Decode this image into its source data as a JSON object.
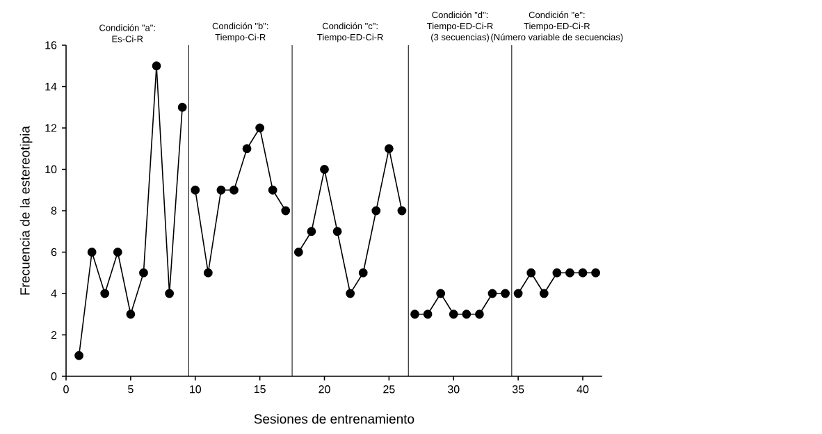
{
  "chart_data": {
    "type": "line",
    "xlabel": "Sesiones de entrenamiento",
    "ylabel": "Frecuencia de la estereotipia",
    "series": [
      {
        "color": "#000000",
        "x": [
          1,
          2,
          3,
          4,
          5,
          6,
          7,
          8,
          9
        ],
        "values": [
          1,
          6,
          4,
          6,
          3,
          5,
          15,
          4,
          13
        ]
      },
      {
        "color": "#000000",
        "x": [
          10,
          11,
          12,
          13,
          14,
          15,
          16,
          17
        ],
        "values": [
          9,
          5,
          9,
          9,
          11,
          12,
          9,
          8
        ]
      },
      {
        "color": "#000000",
        "x": [
          18,
          19,
          20,
          21,
          22,
          23,
          24,
          25,
          26
        ],
        "values": [
          6,
          7,
          10,
          7,
          4,
          5,
          8,
          11,
          8
        ]
      },
      {
        "color": "#000000",
        "x": [
          27,
          28,
          29,
          30,
          31,
          32,
          33,
          34
        ],
        "values": [
          3,
          3,
          4,
          3,
          3,
          3,
          4,
          4
        ]
      },
      {
        "color": "#000000",
        "x": [
          35,
          36,
          37,
          38,
          39,
          40,
          41
        ],
        "values": [
          4,
          5,
          4,
          5,
          5,
          5,
          5
        ]
      }
    ],
    "ref_lines": [
      {
        "axis": "x",
        "value": 9.5,
        "color": "#000000"
      },
      {
        "axis": "x",
        "value": 17.5,
        "color": "#000000"
      },
      {
        "axis": "x",
        "value": 26.5,
        "color": "#000000"
      },
      {
        "axis": "x",
        "value": 34.5,
        "color": "#000000"
      }
    ],
    "annotations": [
      "Condición \"a\":",
      "Es-Ci-R",
      "Condición \"b\":",
      "Tiempo-Ci-R",
      "Condición \"c\":",
      "Tiempo-ED-Ci-R",
      "Condición \"d\":",
      "Tiempo-ED-Ci-R",
      "(3 secuencias)",
      "Condición \"e\":",
      "Tiempo-ED-Ci-R",
      "(Número variable de secuencias)"
    ],
    "xlim": [
      0,
      41.5
    ],
    "ylim": [
      0,
      16
    ],
    "xticks": [
      0,
      5,
      10,
      15,
      20,
      25,
      30,
      35,
      40
    ],
    "yticks": [
      0,
      2,
      4,
      6,
      8,
      10,
      12,
      14,
      16
    ],
    "marker": "circle",
    "line_style": "solid"
  }
}
